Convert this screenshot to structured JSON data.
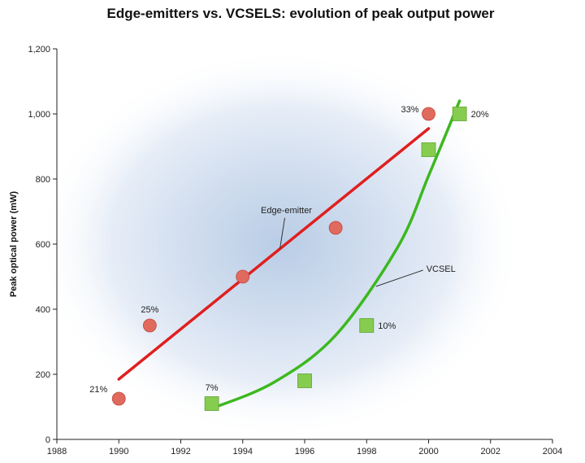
{
  "chart_data": {
    "type": "scatter",
    "title": "Edge-emitters vs. VCSELS: evolution of peak output power",
    "xlabel": "",
    "ylabel": "Peak optical power (mW)",
    "xlim": [
      1988,
      2004
    ],
    "ylim": [
      0,
      1200
    ],
    "xticks": [
      1988,
      1990,
      1992,
      1994,
      1996,
      1998,
      2000,
      2002,
      2004
    ],
    "xtick_labels": [
      "1988",
      "1990",
      "1992",
      "1994",
      "1996",
      "1998",
      "2000",
      "2002",
      "2004"
    ],
    "yticks": [
      0,
      200,
      400,
      600,
      800,
      1000,
      1200
    ],
    "ytick_labels": [
      "0",
      "200",
      "400",
      "600",
      "800",
      "1,000",
      "1,200"
    ],
    "series": [
      {
        "name": "Edge-emitter",
        "marker": "circle",
        "color": "#e06a5e",
        "points": [
          {
            "x": 1990,
            "y": 125,
            "label": "21%"
          },
          {
            "x": 1991,
            "y": 350,
            "label": "25%"
          },
          {
            "x": 1994,
            "y": 500,
            "label": ""
          },
          {
            "x": 1997,
            "y": 650,
            "label": ""
          },
          {
            "x": 2000,
            "y": 1000,
            "label": "33%"
          }
        ],
        "trend": {
          "kind": "linear",
          "x": [
            1990,
            2000
          ],
          "y": [
            185,
            955
          ],
          "color": "#e01f1f"
        }
      },
      {
        "name": "VCSEL",
        "marker": "square",
        "color": "#86cc4e",
        "points": [
          {
            "x": 1993,
            "y": 110,
            "label": "7%"
          },
          {
            "x": 1996,
            "y": 180,
            "label": ""
          },
          {
            "x": 1998,
            "y": 350,
            "label": "10%"
          },
          {
            "x": 2000,
            "y": 890,
            "label": ""
          },
          {
            "x": 2001,
            "y": 1000,
            "label": "20%"
          }
        ],
        "trend": {
          "kind": "curve",
          "x": [
            1993,
            1995,
            1997,
            1999,
            2000,
            2001
          ],
          "y": [
            95,
            175,
            320,
            590,
            810,
            1040
          ],
          "color": "#3cb81e"
        }
      }
    ],
    "grid": false,
    "legend": "none"
  }
}
